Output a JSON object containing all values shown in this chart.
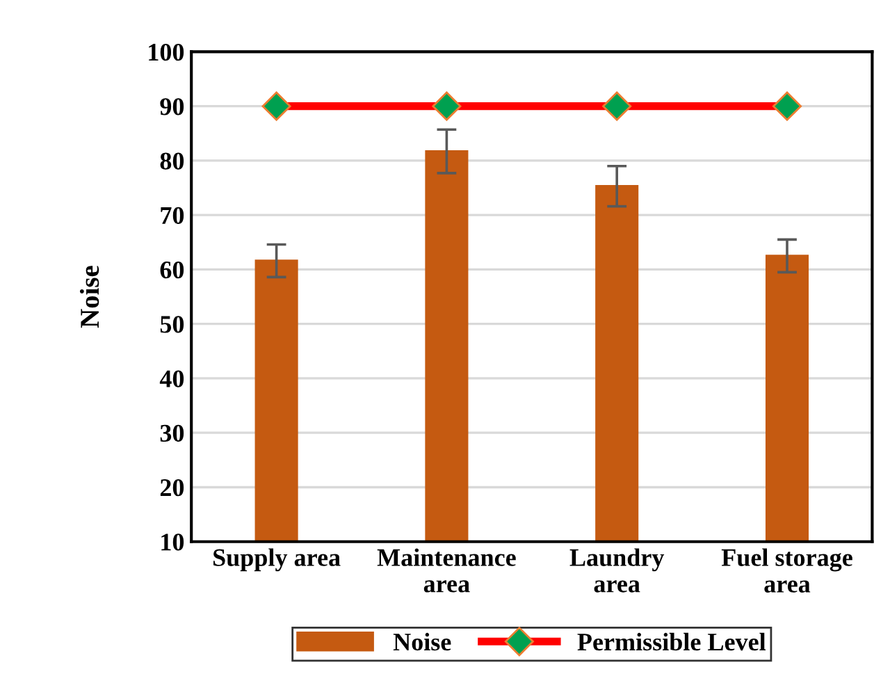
{
  "chart_data": {
    "type": "bar",
    "ylabel": "Noise",
    "categories": [
      "Supply area",
      "Maintenance\narea",
      "Laundry\narea",
      "Fuel storage\narea"
    ],
    "series": [
      {
        "name": "Noise",
        "color": "#c55a11",
        "values": [
          61.6,
          81.7,
          75.3,
          62.5
        ],
        "errors": [
          3,
          4,
          3.7,
          3
        ]
      },
      {
        "name": "Permissible Level",
        "type": "line",
        "color": "#ff0000",
        "marker": "diamond",
        "values": [
          90,
          90,
          90,
          90
        ]
      }
    ],
    "ylim": [
      10,
      100
    ],
    "yticks": [
      10,
      20,
      30,
      40,
      50,
      60,
      70,
      80,
      90,
      100
    ],
    "grid": "y",
    "legend": "bottom"
  }
}
